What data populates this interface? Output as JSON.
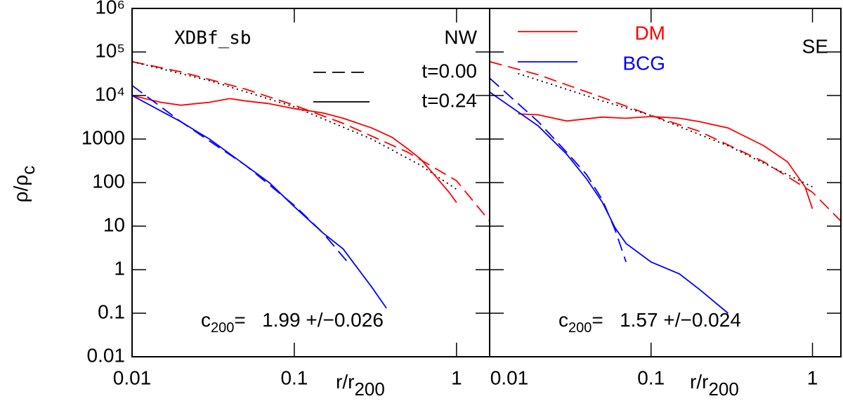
{
  "chart_data": [
    {
      "type": "line",
      "title_left": "XDBf_sb",
      "title_right": "NW",
      "ylabel": {
        "text": "ρ/ρ",
        "subscript": "c"
      },
      "xlabel": {
        "text": "r/r",
        "subscript": "200"
      },
      "annotation": {
        "symbol": "c",
        "subscript": "200",
        "text": "=   1.99 +/−0.026"
      },
      "xlog": true,
      "ylog": true,
      "xlim": [
        0.01,
        1.6
      ],
      "ylim": [
        0.01,
        1000000
      ],
      "xticks": [
        0.01,
        0.1,
        1
      ],
      "yticks": [
        0.01,
        0.1,
        1,
        10,
        100,
        1000,
        {
          "value": 10000,
          "label": "10⁴"
        },
        {
          "value": 100000,
          "label": "10⁵"
        },
        {
          "value": 1000000,
          "label": "10⁶"
        }
      ],
      "ytick_labels": true,
      "legend": [
        {
          "label": "t=0.00",
          "dash": "dashed"
        },
        {
          "label": "t=0.24",
          "dash": "solid"
        }
      ],
      "series": [
        {
          "color": "#ff0000",
          "dash": "dashed",
          "x": [
            0.01,
            0.02,
            0.05,
            0.1,
            0.2,
            0.5,
            1,
            1.6
          ],
          "values": [
            60000,
            35000,
            14000,
            6000,
            2300,
            500,
            110,
            13
          ]
        },
        {
          "color": "#000000",
          "dash": "dotted",
          "x": [
            0.01,
            0.03,
            0.1,
            0.3,
            0.6,
            1
          ],
          "values": [
            60000,
            22000,
            5500,
            1000,
            250,
            70
          ]
        },
        {
          "color": "#ff0000",
          "dash": "solid",
          "x": [
            0.01,
            0.015,
            0.02,
            0.03,
            0.04,
            0.05,
            0.07,
            0.1,
            0.15,
            0.2,
            0.3,
            0.4,
            0.5,
            0.6,
            0.7,
            0.8,
            0.9,
            1
          ],
          "values": [
            10000,
            7000,
            6000,
            7000,
            8500,
            7500,
            6500,
            5000,
            4000,
            3000,
            1800,
            1100,
            600,
            350,
            180,
            100,
            60,
            35
          ]
        },
        {
          "color": "#0000ff",
          "dash": "dashed",
          "x": [
            0.01,
            0.02,
            0.05,
            0.1,
            0.15,
            0.22
          ],
          "values": [
            17000,
            2500,
            250,
            30,
            7,
            1.3
          ]
        },
        {
          "color": "#0000ff",
          "dash": "solid",
          "x": [
            0.01,
            0.02,
            0.025,
            0.03,
            0.05,
            0.07,
            0.1,
            0.15,
            0.2,
            0.3,
            0.37
          ],
          "values": [
            10000,
            2500,
            1500,
            1000,
            250,
            100,
            28,
            7,
            3,
            0.4,
            0.13
          ]
        }
      ]
    },
    {
      "type": "line",
      "title_right": "SE",
      "xlabel": {
        "text": "r/r",
        "subscript": "200"
      },
      "annotation": {
        "symbol": "c",
        "subscript": "200",
        "text": "=   1.57 +/−0.024"
      },
      "xlog": true,
      "ylog": true,
      "xlim": [
        0.01,
        1.5
      ],
      "ylim": [
        0.01,
        1000000
      ],
      "xticks": [
        0.01,
        0.1,
        1
      ],
      "yticks": [
        0.01,
        0.1,
        1,
        10,
        100,
        1000,
        10000,
        100000,
        1000000
      ],
      "ytick_labels": false,
      "legend": [
        {
          "label": "DM",
          "color": "#ff0000"
        },
        {
          "label": "BCG",
          "color": "#0000ff"
        }
      ],
      "series": [
        {
          "color": "#ff0000",
          "dash": "dashed",
          "x": [
            0.01,
            0.02,
            0.05,
            0.1,
            0.2,
            0.5,
            1,
            1.5
          ],
          "values": [
            60000,
            30000,
            9000,
            3500,
            1500,
            300,
            60,
            13
          ]
        },
        {
          "color": "#000000",
          "dash": "dotted",
          "x": [
            0.015,
            0.05,
            0.1,
            0.3,
            1
          ],
          "values": [
            32000,
            7500,
            3500,
            700,
            80
          ]
        },
        {
          "color": "#ff0000",
          "dash": "solid",
          "x": [
            0.015,
            0.02,
            0.03,
            0.05,
            0.07,
            0.1,
            0.15,
            0.2,
            0.3,
            0.5,
            0.7,
            0.9,
            1
          ],
          "values": [
            3800,
            3600,
            2600,
            3200,
            3000,
            3300,
            3000,
            2500,
            1800,
            700,
            300,
            80,
            25
          ]
        },
        {
          "color": "#0000ff",
          "dash": "dashed",
          "x": [
            0.01,
            0.02,
            0.03,
            0.04,
            0.05,
            0.06,
            0.07
          ],
          "values": [
            25000,
            2500,
            500,
            150,
            40,
            8,
            1.5
          ]
        },
        {
          "color": "#0000ff",
          "dash": "solid",
          "x": [
            0.01,
            0.02,
            0.03,
            0.04,
            0.05,
            0.06,
            0.07,
            0.1,
            0.15,
            0.2,
            0.3
          ],
          "values": [
            12000,
            2000,
            450,
            120,
            35,
            9,
            4,
            1.5,
            0.8,
            0.35,
            0.1
          ]
        }
      ]
    }
  ]
}
